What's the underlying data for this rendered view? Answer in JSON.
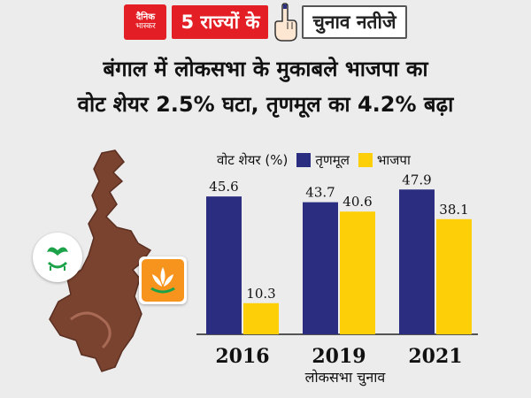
{
  "header": {
    "logo_line1": "दैनिक",
    "logo_line2": "भास्कर",
    "left_label": "5 राज्यों के",
    "right_label": "चुनाव नतीजे"
  },
  "title_line1": "बंगाल में लोकसभा के मुकाबले भाजपा का",
  "title_line2": "वोट शेयर 2.5% घटा, तृणमूल का 4.2% बढ़ा",
  "legend_label": "वोट शेयर (%)",
  "chart_data": {
    "type": "bar",
    "categories": [
      "2016",
      "2019",
      "2021"
    ],
    "series": [
      {
        "name": "तृणमूल",
        "values": [
          45.6,
          43.7,
          47.9
        ],
        "color": "#2b2d80"
      },
      {
        "name": "भाजपा",
        "values": [
          10.3,
          40.6,
          38.1
        ],
        "color": "#fccf09"
      }
    ],
    "xlabel": "लोकसभा चुनाव",
    "ylim": [
      0,
      55
    ]
  }
}
